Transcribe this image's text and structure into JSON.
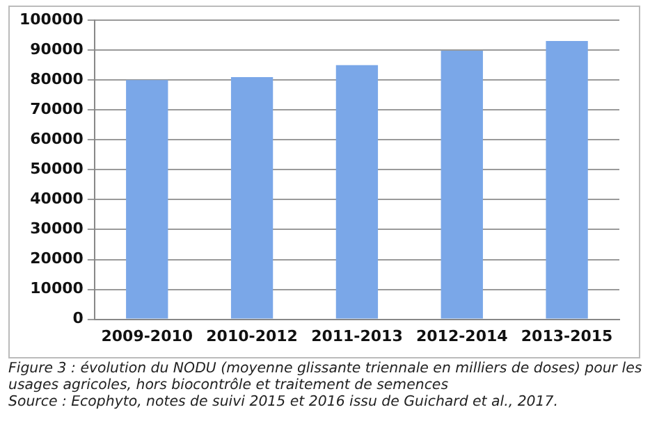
{
  "chart_data": {
    "type": "bar",
    "categories": [
      "2009-2010",
      "2010-2012",
      "2011-2013",
      "2012-2014",
      "2013-2015"
    ],
    "values": [
      80000,
      81000,
      85000,
      89800,
      93100
    ],
    "color": "#7aa7e8",
    "ylim": [
      0,
      100000
    ],
    "yticks": [
      0,
      10000,
      20000,
      30000,
      40000,
      50000,
      60000,
      70000,
      80000,
      90000,
      100000
    ],
    "grid": "y",
    "legend": false,
    "annotations": [
      "Figure 3 : évolution du NODU (moyenne glissante triennale en milliers de doses) pour les usages agricoles, hors biocontrôle et traitement de semences",
      "Source : Ecophyto, notes de suivi 2015 et 2016 issu de Guichard et al., 2017."
    ]
  }
}
